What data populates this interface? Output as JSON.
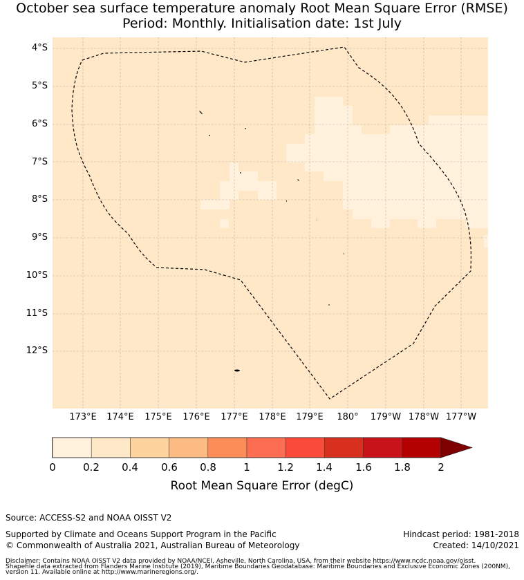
{
  "title": {
    "line1": "October sea surface temperature anomaly Root Mean Square Error (RMSE)",
    "line2": "Period: Monthly. Initialisation date: 1st July"
  },
  "map": {
    "lat_labels": [
      "4°S",
      "5°S",
      "6°S",
      "7°S",
      "8°S",
      "9°S",
      "10°S",
      "11°S",
      "12°S"
    ],
    "lon_labels": [
      "173°E",
      "174°E",
      "175°E",
      "176°E",
      "177°E",
      "178°E",
      "179°E",
      "180°",
      "179°W",
      "178°W",
      "177°W"
    ],
    "lat_range": [
      -13.5,
      -3.7
    ],
    "lon_range": [
      172.2,
      183.7
    ],
    "boundary_style": "dashed",
    "colors": {
      "background": "#fee8c8",
      "low": "#fff1dc"
    }
  },
  "colorbar": {
    "label": "Root Mean Square Error (degC)",
    "ticks": [
      "0",
      "0.2",
      "0.4",
      "0.6",
      "0.8",
      "1",
      "1.2",
      "1.4",
      "1.6",
      "1.8",
      "2"
    ],
    "colors": [
      "#fff1dc",
      "#fee8c8",
      "#fdd49e",
      "#fdbb84",
      "#fc8d59",
      "#fc6e51",
      "#fa4a3a",
      "#d7301f",
      "#c8131a",
      "#b30000"
    ],
    "extend_color": "#7f0000"
  },
  "footer": {
    "source": "Source: ACCESS-S2 and NOAA OISST V2",
    "support": "Supported by Climate and Oceans Support Program in the Pacific",
    "copyright": "© Commonwealth of Australia 2021, Australian Bureau of Meteorology",
    "hindcast": "Hindcast period: 1981-2018",
    "created": "Created: 14/10/2021",
    "disclaimer1": "Disclaimer: Contains NOAA OISST V2 data provided by NOAA/NCEI, Asheville, North Carolina, USA, from their website https://www.ncdc.noaa.gov/oisst.",
    "disclaimer2": "Shapefile data extracted from Flanders Marine Institute (2019), Maritime Boundaries Geodatabase: Maritime Boundaries and Exclusive Economic Zones (200NM),",
    "disclaimer3": "version 11. Available online at http://www.marineregions.org/."
  }
}
